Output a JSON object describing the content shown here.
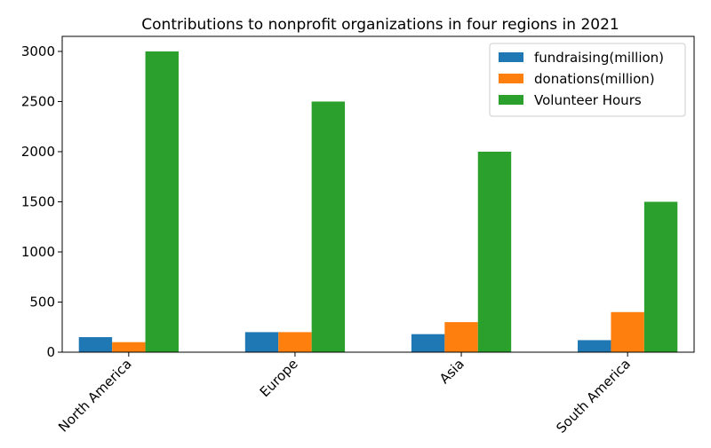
{
  "chart_data": {
    "type": "bar",
    "title": "Contributions to nonprofit organizations in four regions in 2021",
    "xlabel": "",
    "ylabel": "",
    "categories": [
      "North America",
      "Europe",
      "Asia",
      "South America"
    ],
    "series": [
      {
        "name": "fundraising(million)",
        "color": "#1f77b4",
        "values": [
          150,
          200,
          180,
          120
        ]
      },
      {
        "name": "donations(million)",
        "color": "#ff7f0e",
        "values": [
          100,
          200,
          300,
          400
        ]
      },
      {
        "name": "Volunteer Hours",
        "color": "#2ca02c",
        "values": [
          3000,
          2500,
          2000,
          1500
        ]
      }
    ],
    "ylim": [
      0,
      3150
    ],
    "yticks": [
      0,
      500,
      1000,
      1500,
      2000,
      2500,
      3000
    ],
    "ytick_labels": [
      "0",
      "500",
      "1000",
      "1500",
      "2000",
      "2500",
      "3000"
    ],
    "grid": false,
    "legend_position": "top-right"
  }
}
